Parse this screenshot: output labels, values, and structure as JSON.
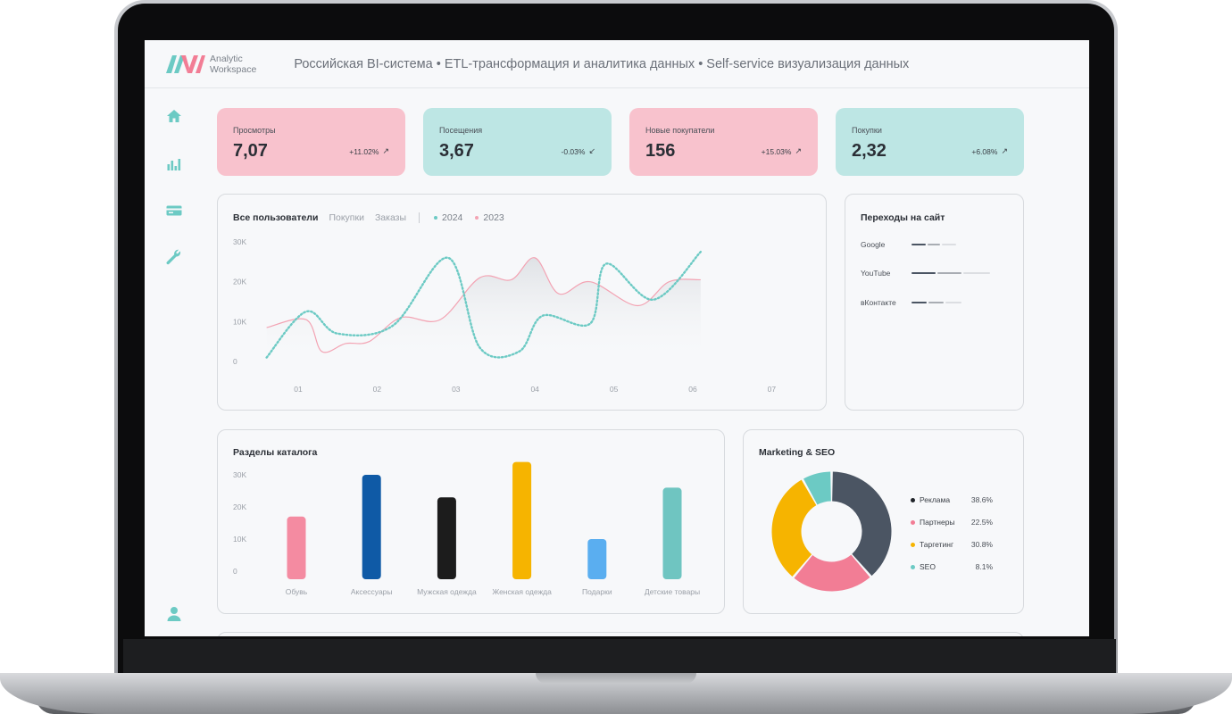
{
  "header": {
    "logo_line1": "Analytic",
    "logo_line2": "Workspace",
    "tagline": "Российская BI-система • ETL-трансформация и аналитика данных • Self-service визуализация данных"
  },
  "sidebar": {
    "icons": [
      "home-icon",
      "bar-chart-icon",
      "card-icon",
      "wrench-icon",
      "user-icon"
    ]
  },
  "kpis": [
    {
      "label": "Просмотры",
      "value": "7,07",
      "delta": "+11.02%",
      "trend": "up",
      "color": "#f8c2cd"
    },
    {
      "label": "Посещения",
      "value": "3,67",
      "delta": "-0.03%",
      "trend": "down",
      "color": "#bde6e4"
    },
    {
      "label": "Новые покупатели",
      "value": "156",
      "delta": "+15.03%",
      "trend": "up",
      "color": "#f8c2cd"
    },
    {
      "label": "Покупки",
      "value": "2,32",
      "delta": "+6.08%",
      "trend": "up",
      "color": "#bde6e4"
    }
  ],
  "users_chart": {
    "tabs": [
      "Все пользователи",
      "Покупки",
      "Заказы"
    ],
    "active_tab": "Все пользователи",
    "legend": [
      {
        "name": "2024",
        "color": "#6ccac4"
      },
      {
        "name": "2023",
        "color": "#f3a3b3"
      }
    ],
    "yticks": [
      "30K",
      "20K",
      "10K",
      "0"
    ],
    "xticks": [
      "01",
      "02",
      "03",
      "04",
      "05",
      "06",
      "07"
    ]
  },
  "traffic": {
    "title": "Переходы на сайт",
    "rows": [
      {
        "name": "Google",
        "segments": [
          16,
          14,
          16
        ]
      },
      {
        "name": "YouTube",
        "segments": [
          27,
          27,
          30
        ]
      },
      {
        "name": "вКонтакте",
        "segments": [
          17,
          17,
          18
        ]
      }
    ]
  },
  "catalog": {
    "title": "Разделы каталога",
    "yticks": [
      "30K",
      "20K",
      "10K",
      "0"
    ]
  },
  "marketing": {
    "title": "Marketing & SEO",
    "items": [
      {
        "name": "Реклама",
        "pct": "38.6%",
        "color": "#1f2329"
      },
      {
        "name": "Партнеры",
        "pct": "22.5%",
        "color": "#f27d95"
      },
      {
        "name": "Таргетинг",
        "pct": "30.8%",
        "color": "#f6b400"
      },
      {
        "name": "SEO",
        "pct": "8.1%",
        "color": "#6ccac4"
      }
    ]
  },
  "chart_data": [
    {
      "type": "line",
      "x": [
        "01",
        "02",
        "03",
        "04",
        "05",
        "06",
        "07"
      ],
      "ylim": [
        0,
        30000
      ],
      "series": [
        {
          "name": "2024",
          "color": "#6ccac4",
          "points": [
            [
              0.6,
              1000
            ],
            [
              1.1,
              12500
            ],
            [
              1.5,
              7000
            ],
            [
              2.2,
              9000
            ],
            [
              2.9,
              26000
            ],
            [
              3.3,
              3500
            ],
            [
              3.8,
              2500
            ],
            [
              4.1,
              11500
            ],
            [
              4.7,
              9500
            ],
            [
              4.9,
              24500
            ],
            [
              5.5,
              15500
            ],
            [
              6.1,
              27500
            ]
          ]
        },
        {
          "name": "2023",
          "color": "#f3a3b3",
          "points": [
            [
              0.6,
              8500
            ],
            [
              1.1,
              10500
            ],
            [
              1.3,
              2500
            ],
            [
              1.6,
              4500
            ],
            [
              1.9,
              5000
            ],
            [
              2.3,
              11000
            ],
            [
              2.8,
              10500
            ],
            [
              3.3,
              21000
            ],
            [
              3.7,
              20500
            ],
            [
              4.0,
              26000
            ],
            [
              4.3,
              17000
            ],
            [
              4.7,
              20000
            ],
            [
              5.3,
              14000
            ],
            [
              5.7,
              20000
            ],
            [
              6.1,
              20500
            ]
          ]
        }
      ]
    },
    {
      "type": "bar",
      "categories": [
        "Обувь",
        "Аксессуары",
        "Мужская одежда",
        "Женская одежда",
        "Подарки",
        "Детские товары"
      ],
      "values": [
        17000,
        30000,
        23000,
        34000,
        10000,
        26000
      ],
      "colors": [
        "#f48ba1",
        "#0f5aa6",
        "#1c1c1c",
        "#f6b400",
        "#5aaef0",
        "#6fc5c1"
      ],
      "yticks": [
        "30K",
        "20K",
        "10K",
        "0"
      ],
      "ylim": [
        0,
        30000
      ]
    },
    {
      "type": "pie",
      "labels": [
        "Реклама",
        "Партнеры",
        "Таргетинг",
        "SEO"
      ],
      "values": [
        38.6,
        22.5,
        30.8,
        8.1
      ]
    }
  ]
}
